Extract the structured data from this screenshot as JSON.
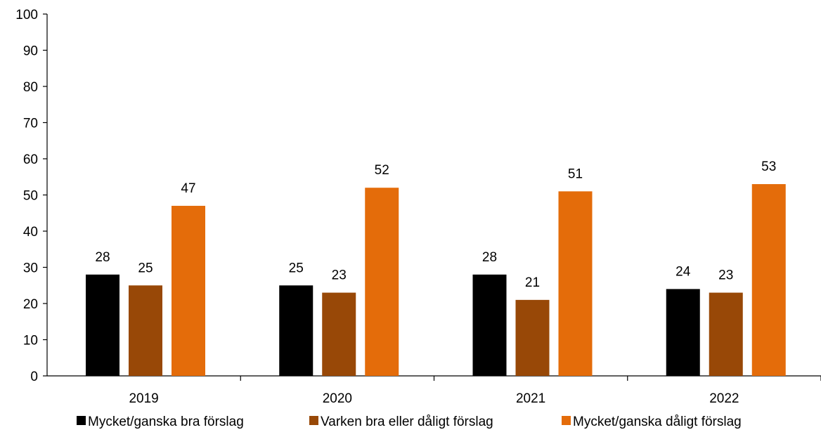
{
  "chart_data": {
    "type": "bar",
    "categories": [
      "2019",
      "2020",
      "2021",
      "2022"
    ],
    "series": [
      {
        "name": "Mycket/ganska bra förslag",
        "color": "#000000",
        "values": [
          28,
          25,
          28,
          24
        ]
      },
      {
        "name": "Varken bra eller dåligt förslag",
        "color": "#984807",
        "values": [
          25,
          23,
          21,
          23
        ]
      },
      {
        "name": "Mycket/ganska dåligt förslag",
        "color": "#E46C0A",
        "values": [
          47,
          52,
          51,
          53
        ]
      }
    ],
    "title": "",
    "xlabel": "",
    "ylabel": "",
    "ylim": [
      0,
      100
    ],
    "yticks": [
      0,
      10,
      20,
      30,
      40,
      50,
      60,
      70,
      80,
      90,
      100
    ],
    "grid": false,
    "data_labels": true,
    "legend_position": "bottom"
  }
}
